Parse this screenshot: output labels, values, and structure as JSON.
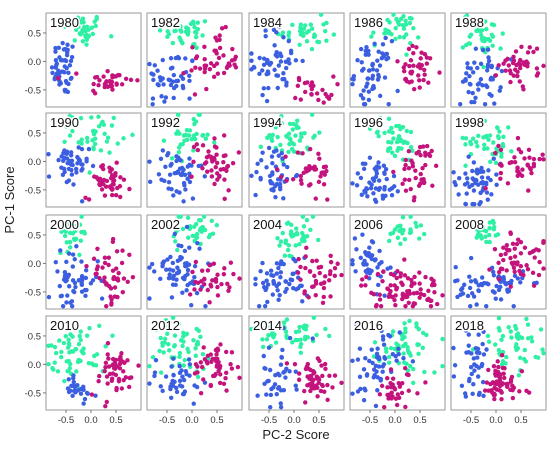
{
  "chart_data": {
    "type": "scatter",
    "xlabel": "PC-2 Score",
    "ylabel": "PC-1 Score",
    "xlim": [
      -0.9,
      1.0
    ],
    "ylim": [
      -0.8,
      0.85
    ],
    "grid": false,
    "x_ticks": [
      "-0.5",
      "0.0",
      "0.5"
    ],
    "x_tick_values": [
      -0.5,
      0.0,
      0.5
    ],
    "y_ticks": [
      "0.5",
      "0.0",
      "-0.5"
    ],
    "y_tick_values": [
      0.5,
      0.0,
      -0.5
    ],
    "colors": {
      "blue": "#3b5fe0",
      "green": "#2ef0a4",
      "magenta": "#c4137c"
    },
    "panels": [
      {
        "year": "1980",
        "clusters": {
          "green": {
            "cx": -0.15,
            "cy": 0.55,
            "sx": 0.2,
            "sy": 0.15,
            "n": 35
          },
          "blue": {
            "cx": -0.55,
            "cy": -0.1,
            "sx": 0.12,
            "sy": 0.25,
            "n": 50
          },
          "magenta": {
            "cx": 0.35,
            "cy": -0.35,
            "sx": 0.25,
            "sy": 0.12,
            "n": 35
          }
        }
      },
      {
        "year": "1982",
        "clusters": {
          "green": {
            "cx": -0.1,
            "cy": 0.5,
            "sx": 0.25,
            "sy": 0.15,
            "n": 35
          },
          "blue": {
            "cx": -0.4,
            "cy": -0.3,
            "sx": 0.25,
            "sy": 0.25,
            "n": 45
          },
          "magenta": {
            "cx": 0.45,
            "cy": 0.0,
            "sx": 0.25,
            "sy": 0.25,
            "n": 45
          }
        }
      },
      {
        "year": "1984",
        "clusters": {
          "green": {
            "cx": 0.2,
            "cy": 0.5,
            "sx": 0.25,
            "sy": 0.15,
            "n": 35
          },
          "blue": {
            "cx": -0.35,
            "cy": 0.0,
            "sx": 0.25,
            "sy": 0.3,
            "n": 55
          },
          "magenta": {
            "cx": 0.4,
            "cy": -0.5,
            "sx": 0.2,
            "sy": 0.12,
            "n": 25
          }
        }
      },
      {
        "year": "1986",
        "clusters": {
          "green": {
            "cx": 0.0,
            "cy": 0.55,
            "sx": 0.25,
            "sy": 0.15,
            "n": 35
          },
          "blue": {
            "cx": -0.45,
            "cy": -0.2,
            "sx": 0.18,
            "sy": 0.28,
            "n": 60
          },
          "magenta": {
            "cx": 0.45,
            "cy": -0.15,
            "sx": 0.25,
            "sy": 0.2,
            "n": 40
          }
        }
      },
      {
        "year": "1988",
        "clusters": {
          "green": {
            "cx": -0.25,
            "cy": 0.45,
            "sx": 0.2,
            "sy": 0.2,
            "n": 40
          },
          "blue": {
            "cx": -0.3,
            "cy": -0.3,
            "sx": 0.2,
            "sy": 0.25,
            "n": 50
          },
          "magenta": {
            "cx": 0.5,
            "cy": -0.05,
            "sx": 0.22,
            "sy": 0.2,
            "n": 40
          }
        }
      },
      {
        "year": "1990",
        "clusters": {
          "green": {
            "cx": 0.1,
            "cy": 0.5,
            "sx": 0.25,
            "sy": 0.18,
            "n": 40
          },
          "blue": {
            "cx": -0.45,
            "cy": -0.1,
            "sx": 0.2,
            "sy": 0.2,
            "n": 45
          },
          "magenta": {
            "cx": 0.35,
            "cy": -0.35,
            "sx": 0.22,
            "sy": 0.15,
            "n": 45
          }
        }
      },
      {
        "year": "1992",
        "clusters": {
          "green": {
            "cx": -0.05,
            "cy": 0.45,
            "sx": 0.22,
            "sy": 0.18,
            "n": 35
          },
          "blue": {
            "cx": -0.3,
            "cy": -0.25,
            "sx": 0.25,
            "sy": 0.25,
            "n": 50
          },
          "magenta": {
            "cx": 0.45,
            "cy": 0.0,
            "sx": 0.22,
            "sy": 0.25,
            "n": 45
          }
        }
      },
      {
        "year": "1994",
        "clusters": {
          "green": {
            "cx": -0.05,
            "cy": 0.45,
            "sx": 0.25,
            "sy": 0.2,
            "n": 45
          },
          "blue": {
            "cx": -0.4,
            "cy": -0.2,
            "sx": 0.2,
            "sy": 0.25,
            "n": 45
          },
          "magenta": {
            "cx": 0.35,
            "cy": -0.2,
            "sx": 0.22,
            "sy": 0.25,
            "n": 35
          }
        }
      },
      {
        "year": "1996",
        "clusters": {
          "green": {
            "cx": 0.0,
            "cy": 0.35,
            "sx": 0.25,
            "sy": 0.2,
            "n": 40
          },
          "blue": {
            "cx": -0.35,
            "cy": -0.35,
            "sx": 0.25,
            "sy": 0.2,
            "n": 50
          },
          "magenta": {
            "cx": 0.5,
            "cy": -0.15,
            "sx": 0.2,
            "sy": 0.25,
            "n": 40
          }
        }
      },
      {
        "year": "1998",
        "clusters": {
          "green": {
            "cx": -0.1,
            "cy": 0.4,
            "sx": 0.25,
            "sy": 0.2,
            "n": 40
          },
          "blue": {
            "cx": -0.4,
            "cy": -0.35,
            "sx": 0.25,
            "sy": 0.2,
            "n": 55
          },
          "magenta": {
            "cx": 0.5,
            "cy": -0.05,
            "sx": 0.22,
            "sy": 0.2,
            "n": 40
          }
        }
      },
      {
        "year": "2000",
        "clusters": {
          "green": {
            "cx": -0.35,
            "cy": 0.55,
            "sx": 0.15,
            "sy": 0.15,
            "n": 30
          },
          "blue": {
            "cx": -0.35,
            "cy": -0.3,
            "sx": 0.25,
            "sy": 0.25,
            "n": 55
          },
          "magenta": {
            "cx": 0.4,
            "cy": -0.2,
            "sx": 0.22,
            "sy": 0.25,
            "n": 45
          }
        }
      },
      {
        "year": "2002",
        "clusters": {
          "green": {
            "cx": 0.05,
            "cy": 0.55,
            "sx": 0.25,
            "sy": 0.18,
            "n": 40
          },
          "blue": {
            "cx": -0.25,
            "cy": -0.1,
            "sx": 0.25,
            "sy": 0.28,
            "n": 65
          },
          "magenta": {
            "cx": 0.4,
            "cy": -0.25,
            "sx": 0.22,
            "sy": 0.2,
            "n": 35
          }
        }
      },
      {
        "year": "2004",
        "clusters": {
          "green": {
            "cx": 0.05,
            "cy": 0.4,
            "sx": 0.22,
            "sy": 0.2,
            "n": 40
          },
          "blue": {
            "cx": -0.25,
            "cy": -0.3,
            "sx": 0.28,
            "sy": 0.22,
            "n": 55
          },
          "magenta": {
            "cx": 0.45,
            "cy": -0.2,
            "sx": 0.22,
            "sy": 0.2,
            "n": 40
          }
        }
      },
      {
        "year": "2006",
        "clusters": {
          "green": {
            "cx": 0.2,
            "cy": 0.6,
            "sx": 0.18,
            "sy": 0.12,
            "n": 25
          },
          "blue": {
            "cx": -0.5,
            "cy": 0.05,
            "sx": 0.2,
            "sy": 0.25,
            "n": 45
          },
          "magenta": {
            "cx": 0.15,
            "cy": -0.45,
            "sx": 0.4,
            "sy": 0.18,
            "n": 85
          }
        }
      },
      {
        "year": "2008",
        "clusters": {
          "green": {
            "cx": -0.2,
            "cy": 0.55,
            "sx": 0.15,
            "sy": 0.15,
            "n": 30
          },
          "blue": {
            "cx": -0.1,
            "cy": -0.4,
            "sx": 0.35,
            "sy": 0.18,
            "n": 65
          },
          "magenta": {
            "cx": 0.45,
            "cy": 0.1,
            "sx": 0.25,
            "sy": 0.25,
            "n": 55
          }
        }
      },
      {
        "year": "2010",
        "clusters": {
          "green": {
            "cx": -0.3,
            "cy": 0.25,
            "sx": 0.3,
            "sy": 0.22,
            "n": 60
          },
          "blue": {
            "cx": -0.3,
            "cy": -0.45,
            "sx": 0.2,
            "sy": 0.15,
            "n": 25
          },
          "magenta": {
            "cx": 0.45,
            "cy": -0.15,
            "sx": 0.25,
            "sy": 0.22,
            "n": 50
          }
        }
      },
      {
        "year": "2012",
        "clusters": {
          "green": {
            "cx": -0.2,
            "cy": 0.35,
            "sx": 0.28,
            "sy": 0.22,
            "n": 55
          },
          "blue": {
            "cx": -0.25,
            "cy": -0.25,
            "sx": 0.3,
            "sy": 0.22,
            "n": 40
          },
          "magenta": {
            "cx": 0.45,
            "cy": -0.05,
            "sx": 0.22,
            "sy": 0.22,
            "n": 50
          }
        }
      },
      {
        "year": "2014",
        "clusters": {
          "green": {
            "cx": 0.0,
            "cy": 0.55,
            "sx": 0.3,
            "sy": 0.15,
            "n": 45
          },
          "blue": {
            "cx": -0.35,
            "cy": -0.2,
            "sx": 0.2,
            "sy": 0.3,
            "n": 40
          },
          "magenta": {
            "cx": 0.4,
            "cy": -0.3,
            "sx": 0.25,
            "sy": 0.2,
            "n": 55
          }
        }
      },
      {
        "year": "2016",
        "clusters": {
          "green": {
            "cx": 0.25,
            "cy": 0.3,
            "sx": 0.3,
            "sy": 0.25,
            "n": 55
          },
          "blue": {
            "cx": -0.4,
            "cy": 0.0,
            "sx": 0.25,
            "sy": 0.3,
            "n": 55
          },
          "magenta": {
            "cx": 0.05,
            "cy": -0.45,
            "sx": 0.25,
            "sy": 0.18,
            "n": 35
          }
        }
      },
      {
        "year": "2018",
        "clusters": {
          "green": {
            "cx": 0.3,
            "cy": 0.35,
            "sx": 0.3,
            "sy": 0.22,
            "n": 50
          },
          "blue": {
            "cx": -0.4,
            "cy": 0.05,
            "sx": 0.2,
            "sy": 0.3,
            "n": 40
          },
          "magenta": {
            "cx": 0.05,
            "cy": -0.35,
            "sx": 0.25,
            "sy": 0.2,
            "n": 60
          }
        }
      }
    ]
  }
}
